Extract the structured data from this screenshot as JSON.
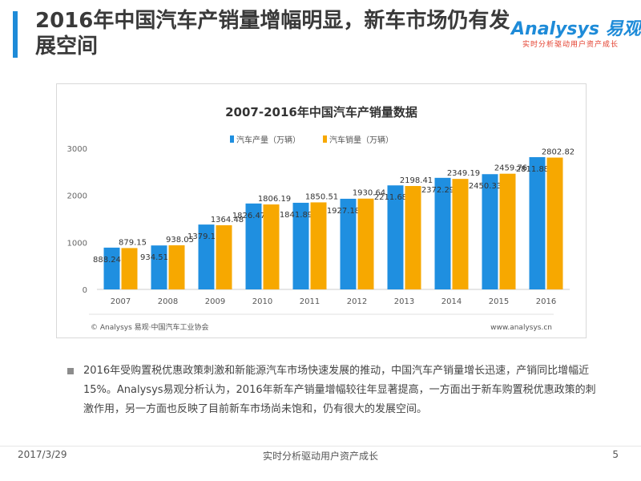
{
  "page": {
    "title": "2016年中国汽车产销量增幅明显，新车市场仍有发展空间",
    "body": "2016年受购置税优惠政策刺激和新能源汽车市场快速发展的推动，中国汽车产销量增长迅速，产销同比增幅近15%。Analysys易观分析认为，2016年新车产销量增幅较往年显著提高，一方面出于新车购置税优惠政策的刺激作用，另一方面也反映了目前新车市场尚未饱和，仍有很大的发展空间。"
  },
  "logo": {
    "brand": "Analysys",
    "brand_cn": "易观",
    "tagline": "实时分析驱动用户资产成长"
  },
  "footer": {
    "date": "2017/3/29",
    "slogan": "实时分析驱动用户资产成长",
    "page_number": "5"
  },
  "colors": {
    "accent": "#1e8bd8",
    "production": "#1f8fe0",
    "sales": "#f7a800"
  },
  "chart_data": {
    "type": "bar",
    "title": "2007-2016年中国汽车产销量数据",
    "categories": [
      "2007",
      "2008",
      "2009",
      "2010",
      "2011",
      "2012",
      "2013",
      "2014",
      "2015",
      "2016"
    ],
    "series": [
      {
        "name": "汽车产量（万辆）",
        "values": [
          888.24,
          934.51,
          1379.1,
          1826.47,
          1841.89,
          1927.18,
          2211.68,
          2372.29,
          2450.33,
          2811.88
        ]
      },
      {
        "name": "汽车销量（万辆）",
        "values": [
          879.15,
          938.05,
          1364.48,
          1806.19,
          1850.51,
          1930.64,
          2198.41,
          2349.19,
          2459.76,
          2802.82
        ]
      }
    ],
    "y_ticks": [
      "0",
      "1000",
      "2000",
      "3000"
    ],
    "ylim": [
      0,
      3000
    ],
    "grid": false,
    "legend_position": "top",
    "source": "© Analysys 易观·中国汽车工业协会",
    "url": "www.analysys.cn"
  }
}
